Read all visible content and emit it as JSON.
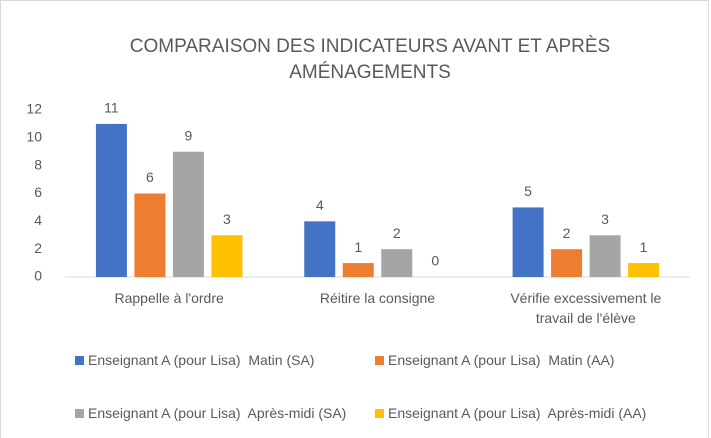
{
  "chart_data": {
    "type": "bar",
    "title": "COMPARAISON DES INDICATEURS AVANT ET APRÈS AMÉNAGEMENTS",
    "categories": [
      "Rappelle à l'ordre",
      "Réitire la consigne",
      "Vérifie excessivement le travail de l'élève"
    ],
    "series": [
      {
        "name": "Enseignant A (pour Lisa)  Matin (SA)",
        "color": "#4472c4",
        "values": [
          11,
          4,
          5
        ]
      },
      {
        "name": "Enseignant A (pour Lisa)  Matin (AA)",
        "color": "#ed7d31",
        "values": [
          6,
          1,
          2
        ]
      },
      {
        "name": "Enseignant A (pour Lisa)  Après-midi (SA)",
        "color": "#a5a5a5",
        "values": [
          9,
          2,
          3
        ]
      },
      {
        "name": "Enseignant A (pour Lisa)  Après-midi (AA)",
        "color": "#ffc000",
        "values": [
          3,
          0,
          1
        ]
      }
    ],
    "ylim": [
      0,
      12
    ],
    "yticks": [
      0,
      2,
      4,
      6,
      8,
      10,
      12
    ],
    "grid": false,
    "legend": "bottom"
  }
}
